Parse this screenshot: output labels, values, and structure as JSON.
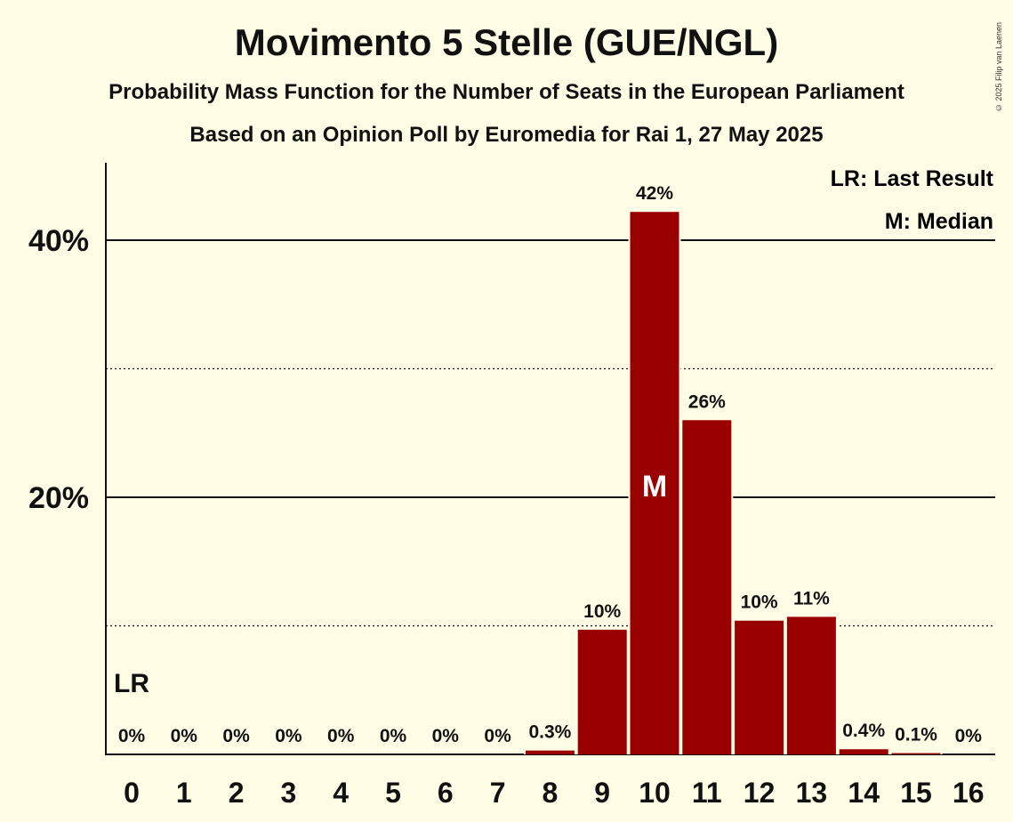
{
  "header": {
    "title": "Movimento 5 Stelle (GUE/NGL)",
    "subtitle": "Probability Mass Function for the Number of Seats in the European Parliament",
    "source": "Based on an Opinion Poll by Euromedia for Rai 1, 27 May 2025",
    "copyright": "© 2025 Filip van Laenen"
  },
  "legend": {
    "last_result": "LR: Last Result",
    "median": "M: Median"
  },
  "markers": {
    "last_result_label": "LR",
    "last_result_seat": 0,
    "median_label": "M",
    "median_seat": 10
  },
  "chart_data": {
    "type": "bar",
    "title": "Movimento 5 Stelle (GUE/NGL)",
    "xlabel": "",
    "ylabel": "",
    "categories": [
      "0",
      "1",
      "2",
      "3",
      "4",
      "5",
      "6",
      "7",
      "8",
      "9",
      "10",
      "11",
      "12",
      "13",
      "14",
      "15",
      "16"
    ],
    "values": [
      0,
      0,
      0,
      0,
      0,
      0,
      0,
      0,
      0.3,
      9.7,
      42.2,
      26.0,
      10.4,
      10.7,
      0.4,
      0.1,
      0
    ],
    "data_labels": [
      "0%",
      "0%",
      "0%",
      "0%",
      "0%",
      "0%",
      "0%",
      "0%",
      "0.3%",
      "10%",
      "42%",
      "26%",
      "10%",
      "11%",
      "0.4%",
      "0.1%",
      "0%"
    ],
    "ylim": [
      0,
      46
    ],
    "yticks": [
      20,
      40
    ],
    "ytick_labels": [
      "20%",
      "40%"
    ],
    "minor_gridlines": [
      10,
      30
    ],
    "grid": true,
    "legend_position": "top-right",
    "colors": {
      "bar": "#990000",
      "background": "#fffde6",
      "text": "#111111"
    }
  }
}
